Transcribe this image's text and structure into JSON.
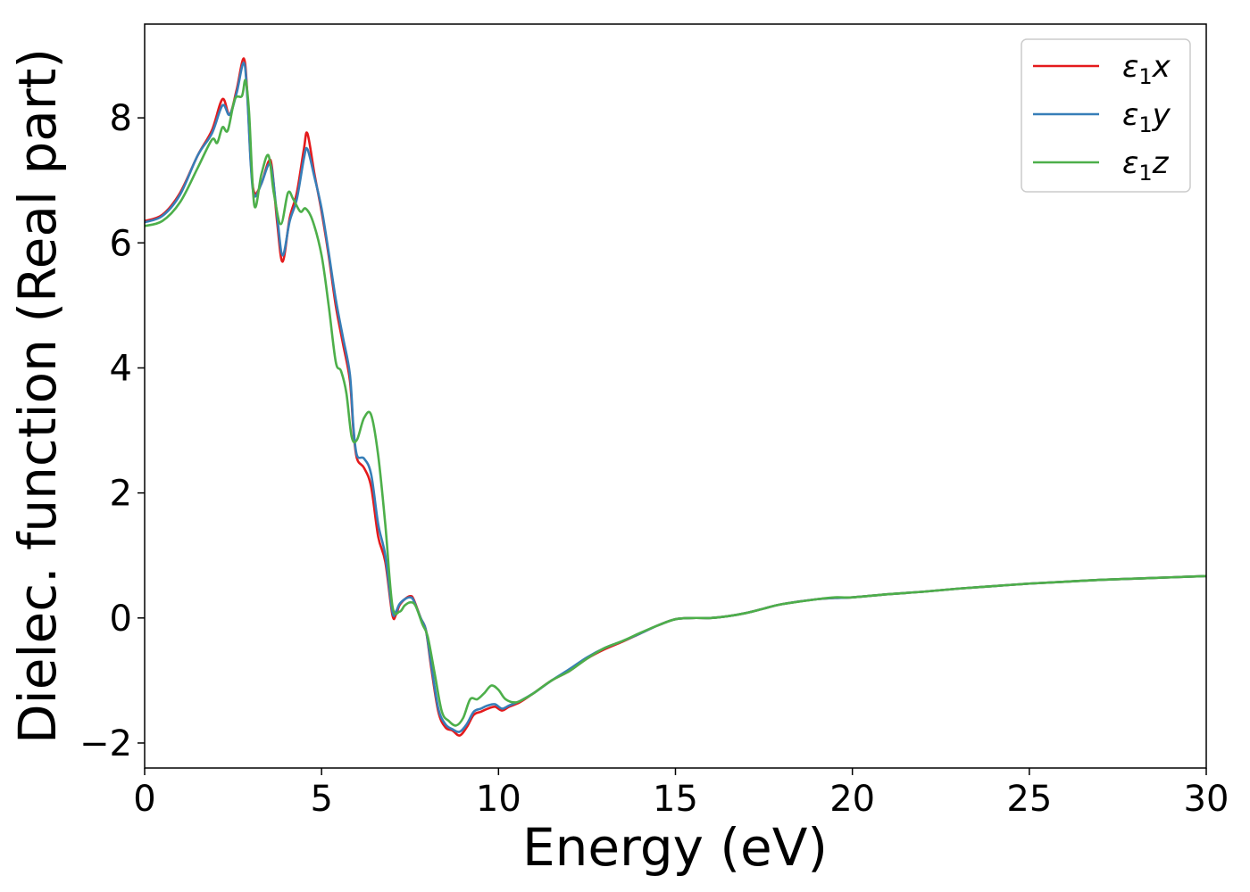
{
  "chart_data": {
    "type": "line",
    "title": "",
    "xlabel": "Energy (eV)",
    "ylabel": "Dielec. function (Real part)",
    "xlim": [
      0,
      30
    ],
    "ylim": [
      -2.4,
      9.5
    ],
    "xticks": [
      0,
      5,
      10,
      15,
      20,
      25,
      30
    ],
    "xtick_labels": [
      "0",
      "5",
      "10",
      "15",
      "20",
      "25",
      "30"
    ],
    "yticks": [
      -2,
      0,
      2,
      4,
      6,
      8
    ],
    "ytick_labels": [
      "−2",
      "0",
      "2",
      "4",
      "6",
      "8"
    ],
    "grid": false,
    "legend": {
      "placement": "top-right"
    },
    "series": [
      {
        "name": "ε₁x",
        "legend_base": "ε",
        "legend_sub": "1",
        "legend_axis": "x",
        "color": "#e41a1c",
        "x": [
          0,
          0.5,
          1.0,
          1.5,
          1.9,
          2.2,
          2.4,
          2.6,
          2.8,
          2.9,
          3.0,
          3.1,
          3.3,
          3.5,
          3.6,
          3.75,
          3.9,
          4.1,
          4.3,
          4.5,
          4.6,
          4.8,
          5.0,
          5.2,
          5.4,
          5.6,
          5.8,
          5.9,
          6.0,
          6.2,
          6.4,
          6.6,
          6.8,
          7.0,
          7.1,
          7.2,
          7.35,
          7.5,
          7.6,
          7.8,
          7.95,
          8.1,
          8.3,
          8.5,
          8.7,
          8.9,
          9.1,
          9.3,
          9.5,
          9.7,
          9.9,
          10.1,
          10.3,
          10.6,
          11.0,
          11.5,
          12.0,
          12.5,
          13.0,
          13.5,
          14.0,
          14.5,
          15.0,
          15.5,
          16.0,
          16.5,
          17.0,
          17.5,
          18.0,
          19.0,
          19.5,
          20.0,
          21.0,
          22.0,
          23.0,
          24.0,
          25.0,
          26.0,
          27.0,
          28.0,
          29.0,
          30.0
        ],
        "y": [
          6.35,
          6.45,
          6.8,
          7.4,
          7.8,
          8.3,
          8.05,
          8.45,
          8.95,
          8.4,
          7.3,
          6.8,
          6.95,
          7.3,
          7.2,
          6.3,
          5.7,
          6.4,
          6.8,
          7.5,
          7.75,
          7.1,
          6.5,
          5.8,
          5.0,
          4.4,
          3.8,
          3.0,
          2.55,
          2.4,
          2.1,
          1.3,
          0.9,
          0.05,
          0.05,
          0.2,
          0.3,
          0.35,
          0.3,
          0.0,
          -0.2,
          -0.8,
          -1.5,
          -1.75,
          -1.8,
          -1.88,
          -1.75,
          -1.55,
          -1.5,
          -1.45,
          -1.42,
          -1.48,
          -1.42,
          -1.35,
          -1.2,
          -1.0,
          -0.85,
          -0.65,
          -0.5,
          -0.38,
          -0.25,
          -0.12,
          -0.02,
          0.0,
          0.0,
          0.03,
          0.08,
          0.15,
          0.22,
          0.3,
          0.32,
          0.33,
          0.38,
          0.42,
          0.47,
          0.51,
          0.55,
          0.58,
          0.61,
          0.63,
          0.65,
          0.67
        ]
      },
      {
        "name": "ε₁y",
        "legend_base": "ε",
        "legend_sub": "1",
        "legend_axis": "y",
        "color": "#377eb8",
        "x": [
          0,
          0.5,
          1.0,
          1.5,
          1.9,
          2.2,
          2.4,
          2.6,
          2.8,
          2.9,
          3.0,
          3.1,
          3.3,
          3.5,
          3.6,
          3.75,
          3.9,
          4.1,
          4.3,
          4.5,
          4.6,
          4.8,
          5.0,
          5.2,
          5.4,
          5.6,
          5.8,
          5.9,
          6.0,
          6.2,
          6.4,
          6.6,
          6.8,
          7.0,
          7.1,
          7.2,
          7.35,
          7.5,
          7.6,
          7.8,
          7.95,
          8.1,
          8.3,
          8.5,
          8.7,
          8.9,
          9.1,
          9.3,
          9.5,
          9.7,
          9.9,
          10.1,
          10.3,
          10.6,
          11.0,
          11.5,
          12.0,
          12.5,
          13.0,
          13.5,
          14.0,
          14.5,
          15.0,
          15.5,
          16.0,
          16.5,
          17.0,
          17.5,
          18.0,
          19.0,
          19.5,
          20.0,
          21.0,
          22.0,
          23.0,
          24.0,
          25.0,
          26.0,
          27.0,
          28.0,
          29.0,
          30.0
        ],
        "y": [
          6.33,
          6.43,
          6.77,
          7.4,
          7.75,
          8.2,
          8.05,
          8.4,
          8.88,
          8.35,
          7.25,
          6.75,
          6.95,
          7.25,
          7.15,
          6.4,
          5.8,
          6.35,
          6.7,
          7.35,
          7.5,
          7.05,
          6.55,
          5.85,
          5.1,
          4.5,
          3.9,
          3.05,
          2.6,
          2.55,
          2.3,
          1.5,
          1.0,
          0.1,
          0.1,
          0.22,
          0.3,
          0.33,
          0.28,
          0.0,
          -0.2,
          -0.75,
          -1.45,
          -1.7,
          -1.78,
          -1.82,
          -1.7,
          -1.5,
          -1.45,
          -1.4,
          -1.38,
          -1.45,
          -1.4,
          -1.33,
          -1.2,
          -1.0,
          -0.82,
          -0.63,
          -0.48,
          -0.37,
          -0.25,
          -0.12,
          -0.02,
          0.0,
          0.0,
          0.03,
          0.08,
          0.15,
          0.22,
          0.3,
          0.32,
          0.33,
          0.38,
          0.42,
          0.47,
          0.51,
          0.55,
          0.58,
          0.61,
          0.63,
          0.65,
          0.67
        ]
      },
      {
        "name": "ε₁z",
        "legend_base": "ε",
        "legend_sub": "1",
        "legend_axis": "z",
        "color": "#4daf4a",
        "x": [
          0,
          0.5,
          1.0,
          1.5,
          1.9,
          2.05,
          2.2,
          2.35,
          2.55,
          2.75,
          2.85,
          2.95,
          3.1,
          3.3,
          3.5,
          3.65,
          3.85,
          4.05,
          4.2,
          4.4,
          4.55,
          4.75,
          5.0,
          5.2,
          5.4,
          5.55,
          5.7,
          5.85,
          6.0,
          6.2,
          6.4,
          6.6,
          6.8,
          7.0,
          7.2,
          7.35,
          7.5,
          7.65,
          7.85,
          8.0,
          8.2,
          8.4,
          8.6,
          8.8,
          9.0,
          9.2,
          9.4,
          9.6,
          9.8,
          10.0,
          10.2,
          10.5,
          10.8,
          11.0,
          11.5,
          12.0,
          12.5,
          13.0,
          13.5,
          14.0,
          14.5,
          15.0,
          15.5,
          16.0,
          16.5,
          17.0,
          17.5,
          18.0,
          19.0,
          19.5,
          20.0,
          21.0,
          22.0,
          23.0,
          24.0,
          25.0,
          26.0,
          27.0,
          28.0,
          29.0,
          30.0
        ],
        "y": [
          6.27,
          6.35,
          6.65,
          7.2,
          7.65,
          7.6,
          7.85,
          7.8,
          8.3,
          8.35,
          8.6,
          8.1,
          6.6,
          7.1,
          7.4,
          6.8,
          6.3,
          6.8,
          6.7,
          6.5,
          6.55,
          6.35,
          5.8,
          5.0,
          4.1,
          3.95,
          3.6,
          2.9,
          2.85,
          3.2,
          3.25,
          2.6,
          1.5,
          0.2,
          0.1,
          0.2,
          0.25,
          0.2,
          -0.1,
          -0.3,
          -0.9,
          -1.5,
          -1.65,
          -1.72,
          -1.6,
          -1.3,
          -1.3,
          -1.2,
          -1.08,
          -1.15,
          -1.3,
          -1.35,
          -1.27,
          -1.2,
          -1.0,
          -0.85,
          -0.65,
          -0.48,
          -0.37,
          -0.24,
          -0.12,
          -0.02,
          0.0,
          0.0,
          0.03,
          0.08,
          0.15,
          0.22,
          0.3,
          0.33,
          0.33,
          0.38,
          0.42,
          0.47,
          0.51,
          0.55,
          0.58,
          0.61,
          0.63,
          0.65,
          0.67
        ]
      }
    ]
  }
}
